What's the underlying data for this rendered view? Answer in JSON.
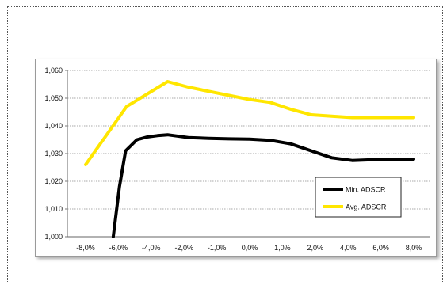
{
  "chart_data": {
    "type": "line",
    "x": [
      -8,
      -7,
      -6,
      -5,
      -4,
      -3,
      -2,
      -1,
      0,
      1,
      2,
      3,
      4,
      5,
      6,
      7,
      8
    ],
    "x_tick_labels": [
      "-8,0%",
      "-6,0%",
      "-4,0%",
      "-2,0%",
      "-1,0%",
      "0,0%",
      "1,0%",
      "2,0%",
      "4,0%",
      "6,0%",
      "8,0%"
    ],
    "y_tick_labels": [
      "1,000",
      "1,010",
      "1,020",
      "1,030",
      "1,040",
      "1,050",
      "1,060"
    ],
    "ylim": [
      1.0,
      1.06
    ],
    "grid": true,
    "legend_position": "right, lower-middle",
    "series": [
      {
        "name": "Min. ADSCR",
        "color": "#000000",
        "points": [
          [
            -6.65,
            1.0
          ],
          [
            -6.35,
            1.018
          ],
          [
            -6.05,
            1.031
          ],
          [
            -5.5,
            1.035
          ],
          [
            -5.0,
            1.036
          ],
          [
            -4.5,
            1.0365
          ],
          [
            -4.0,
            1.0368
          ],
          [
            -3.0,
            1.0358
          ],
          [
            -2.0,
            1.0355
          ],
          [
            -1.0,
            1.0353
          ],
          [
            0.0,
            1.0352
          ],
          [
            1.0,
            1.0348
          ],
          [
            2.0,
            1.0335
          ],
          [
            3.0,
            1.031
          ],
          [
            4.0,
            1.0285
          ],
          [
            5.0,
            1.0275
          ],
          [
            6.0,
            1.0278
          ],
          [
            7.0,
            1.0278
          ],
          [
            8.0,
            1.028
          ]
        ]
      },
      {
        "name": "Avg. ADSCR",
        "color": "#FFE600",
        "points": [
          [
            -8.0,
            1.026
          ],
          [
            -6.0,
            1.047
          ],
          [
            -4.0,
            1.056
          ],
          [
            -3.0,
            1.054
          ],
          [
            -2.0,
            1.0525
          ],
          [
            -1.0,
            1.051
          ],
          [
            0.0,
            1.0495
          ],
          [
            1.0,
            1.0485
          ],
          [
            2.0,
            1.046
          ],
          [
            3.0,
            1.044
          ],
          [
            4.0,
            1.0435
          ],
          [
            5.0,
            1.043
          ],
          [
            6.0,
            1.043
          ],
          [
            7.0,
            1.043
          ],
          [
            8.0,
            1.043
          ]
        ]
      }
    ]
  }
}
